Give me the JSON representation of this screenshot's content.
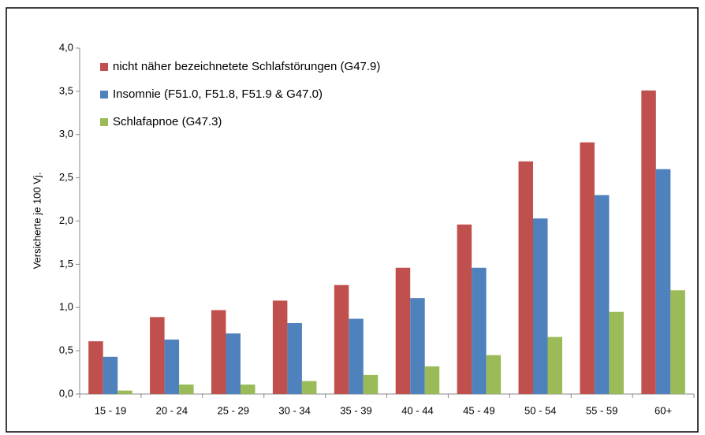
{
  "chart_data": {
    "type": "bar",
    "y_label": "Versicherte je 100  Vj.",
    "categories": [
      "15 - 19",
      "20 - 24",
      "25 - 29",
      "30 - 34",
      "35 - 39",
      "40 - 44",
      "45 - 49",
      "50 - 54",
      "55 - 59",
      "60+"
    ],
    "series": [
      {
        "name": "nicht näher bezeichnetete Schlafstörungen (G47.9)",
        "color": "#c0504d",
        "values": [
          0.61,
          0.89,
          0.97,
          1.08,
          1.26,
          1.46,
          1.96,
          2.69,
          2.91,
          3.51
        ]
      },
      {
        "name": "Insomnie (F51.0, F51.8, F51.9 & G47.0)",
        "color": "#4f81bd",
        "values": [
          0.43,
          0.63,
          0.7,
          0.82,
          0.87,
          1.11,
          1.46,
          2.03,
          2.3,
          2.6
        ]
      },
      {
        "name": "Schlafapnoe (G47.3)",
        "color": "#9bbb59",
        "values": [
          0.04,
          0.11,
          0.11,
          0.15,
          0.22,
          0.32,
          0.45,
          0.66,
          0.95,
          1.2
        ]
      }
    ],
    "ylim": [
      0,
      4
    ],
    "yticks": [
      {
        "value": 0,
        "label": "0,0"
      },
      {
        "value": 0.5,
        "label": "0,5"
      },
      {
        "value": 1,
        "label": "1,0"
      },
      {
        "value": 1.5,
        "label": "1,5"
      },
      {
        "value": 2,
        "label": "2,0"
      },
      {
        "value": 2.5,
        "label": "2,5"
      },
      {
        "value": 3,
        "label": "3,0"
      },
      {
        "value": 3.5,
        "label": "3,5"
      },
      {
        "value": 4,
        "label": "4,0"
      }
    ],
    "grid": false,
    "legend": "top-left"
  }
}
